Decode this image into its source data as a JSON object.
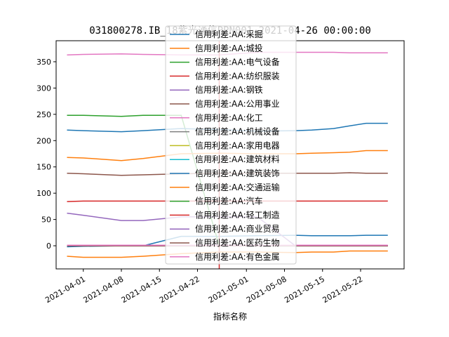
{
  "chart_data": {
    "type": "line",
    "title": "031800278.IB_18紫光通信PPN001_2021-04-26 00:00:00",
    "xlabel": "指标名称",
    "ylabel": "",
    "xlim": [
      "2021-03-27",
      "2021-05-30"
    ],
    "ylim": [
      -44,
      390
    ],
    "yticks": [
      0,
      50,
      100,
      150,
      200,
      250,
      300,
      350
    ],
    "xticks": [
      "2021-04-01",
      "2021-04-08",
      "2021-04-15",
      "2021-04-22",
      "2021-05-01",
      "2021-05-08",
      "2021-05-15",
      "2021-05-22"
    ],
    "grid": false,
    "legend_position": "top-center",
    "marker": {
      "x": "2021-04-26",
      "color": "#d62728"
    },
    "x": [
      "2021-03-29",
      "2021-04-01",
      "2021-04-08",
      "2021-04-12",
      "2021-04-19",
      "2021-04-26",
      "2021-05-03",
      "2021-05-10",
      "2021-05-13",
      "2021-05-17",
      "2021-05-20",
      "2021-05-23",
      "2021-05-27"
    ],
    "series": [
      {
        "name": "信用利差:AA:采掘",
        "color": "#1f77b4",
        "values": [
          -2,
          -1,
          0,
          0,
          18,
          18,
          19,
          20,
          19,
          19,
          19,
          20,
          20
        ]
      },
      {
        "name": "信用利差:AA:城投",
        "color": "#ff7f0e",
        "values": [
          -20,
          -22,
          -22,
          -20,
          -15,
          -12,
          -12,
          -13,
          -12,
          -12,
          -10,
          -10,
          -10
        ]
      },
      {
        "name": "信用利差:AA:电气设备",
        "color": "#2ca02c",
        "values": [
          248,
          248,
          246,
          248,
          248,
          0,
          0,
          0,
          0,
          0,
          0,
          0,
          0
        ]
      },
      {
        "name": "信用利差:AA:纺织服装",
        "color": "#d62728",
        "values": [
          84,
          85,
          85,
          85,
          85,
          85,
          85,
          85,
          85,
          85,
          85,
          85,
          85
        ]
      },
      {
        "name": "信用利差:AA:钢铁",
        "color": "#9467bd",
        "values": [
          62,
          58,
          48,
          48,
          55,
          55,
          55,
          0,
          0,
          0,
          0,
          0,
          0
        ]
      },
      {
        "name": "信用利差:AA:公用事业",
        "color": "#8c564b",
        "values": [
          138,
          137,
          134,
          135,
          137,
          138,
          138,
          138,
          138,
          138,
          139,
          138,
          138
        ]
      },
      {
        "name": "信用利差:AA:化工",
        "color": "#e377c2",
        "values": [
          363,
          364,
          365,
          364,
          363,
          363,
          368,
          368,
          368,
          368,
          367,
          367,
          367
        ]
      },
      {
        "name": "信用利差:AA:机械设备",
        "color": "#7f7f7f",
        "values": [
          0,
          0,
          0,
          0,
          0,
          0,
          0,
          0,
          0,
          0,
          0,
          0,
          0
        ]
      },
      {
        "name": "信用利差:AA:家用电器",
        "color": "#bcbd22",
        "values": [
          0,
          0,
          0,
          0,
          0,
          0,
          0,
          0,
          0,
          0,
          0,
          0,
          0
        ]
      },
      {
        "name": "信用利差:AA:建筑材料",
        "color": "#17becf",
        "values": [
          0,
          0,
          0,
          0,
          0,
          0,
          0,
          0,
          0,
          0,
          0,
          0,
          0
        ]
      },
      {
        "name": "信用利差:AA:建筑装饰",
        "color": "#1f77b4",
        "values": [
          220,
          219,
          217,
          219,
          223,
          221,
          218,
          219,
          220,
          223,
          228,
          233,
          233
        ]
      },
      {
        "name": "信用利差:AA:交通运输",
        "color": "#ff7f0e",
        "values": [
          168,
          167,
          162,
          166,
          175,
          176,
          175,
          175,
          176,
          177,
          178,
          181,
          181
        ]
      },
      {
        "name": "信用利差:AA:汽车",
        "color": "#2ca02c",
        "values": [
          0,
          0,
          0,
          0,
          0,
          0,
          0,
          0,
          0,
          0,
          0,
          0,
          0
        ]
      },
      {
        "name": "信用利差:AA:轻工制造",
        "color": "#d62728",
        "values": [
          0,
          0,
          0,
          0,
          0,
          0,
          0,
          0,
          0,
          0,
          0,
          0,
          0
        ]
      },
      {
        "name": "信用利差:AA:商业贸易",
        "color": "#9467bd",
        "values": [
          0,
          0,
          0,
          0,
          0,
          0,
          0,
          0,
          0,
          0,
          0,
          0,
          0
        ]
      },
      {
        "name": "信用利差:AA:医药生物",
        "color": "#8c564b",
        "values": [
          0,
          0,
          0,
          0,
          0,
          0,
          0,
          0,
          0,
          0,
          0,
          0,
          0
        ]
      },
      {
        "name": "信用利差:AA:有色金属",
        "color": "#e377c2",
        "values": [
          1,
          1,
          1,
          1,
          1,
          1,
          1,
          1,
          1,
          1,
          1,
          1,
          1
        ]
      }
    ]
  }
}
